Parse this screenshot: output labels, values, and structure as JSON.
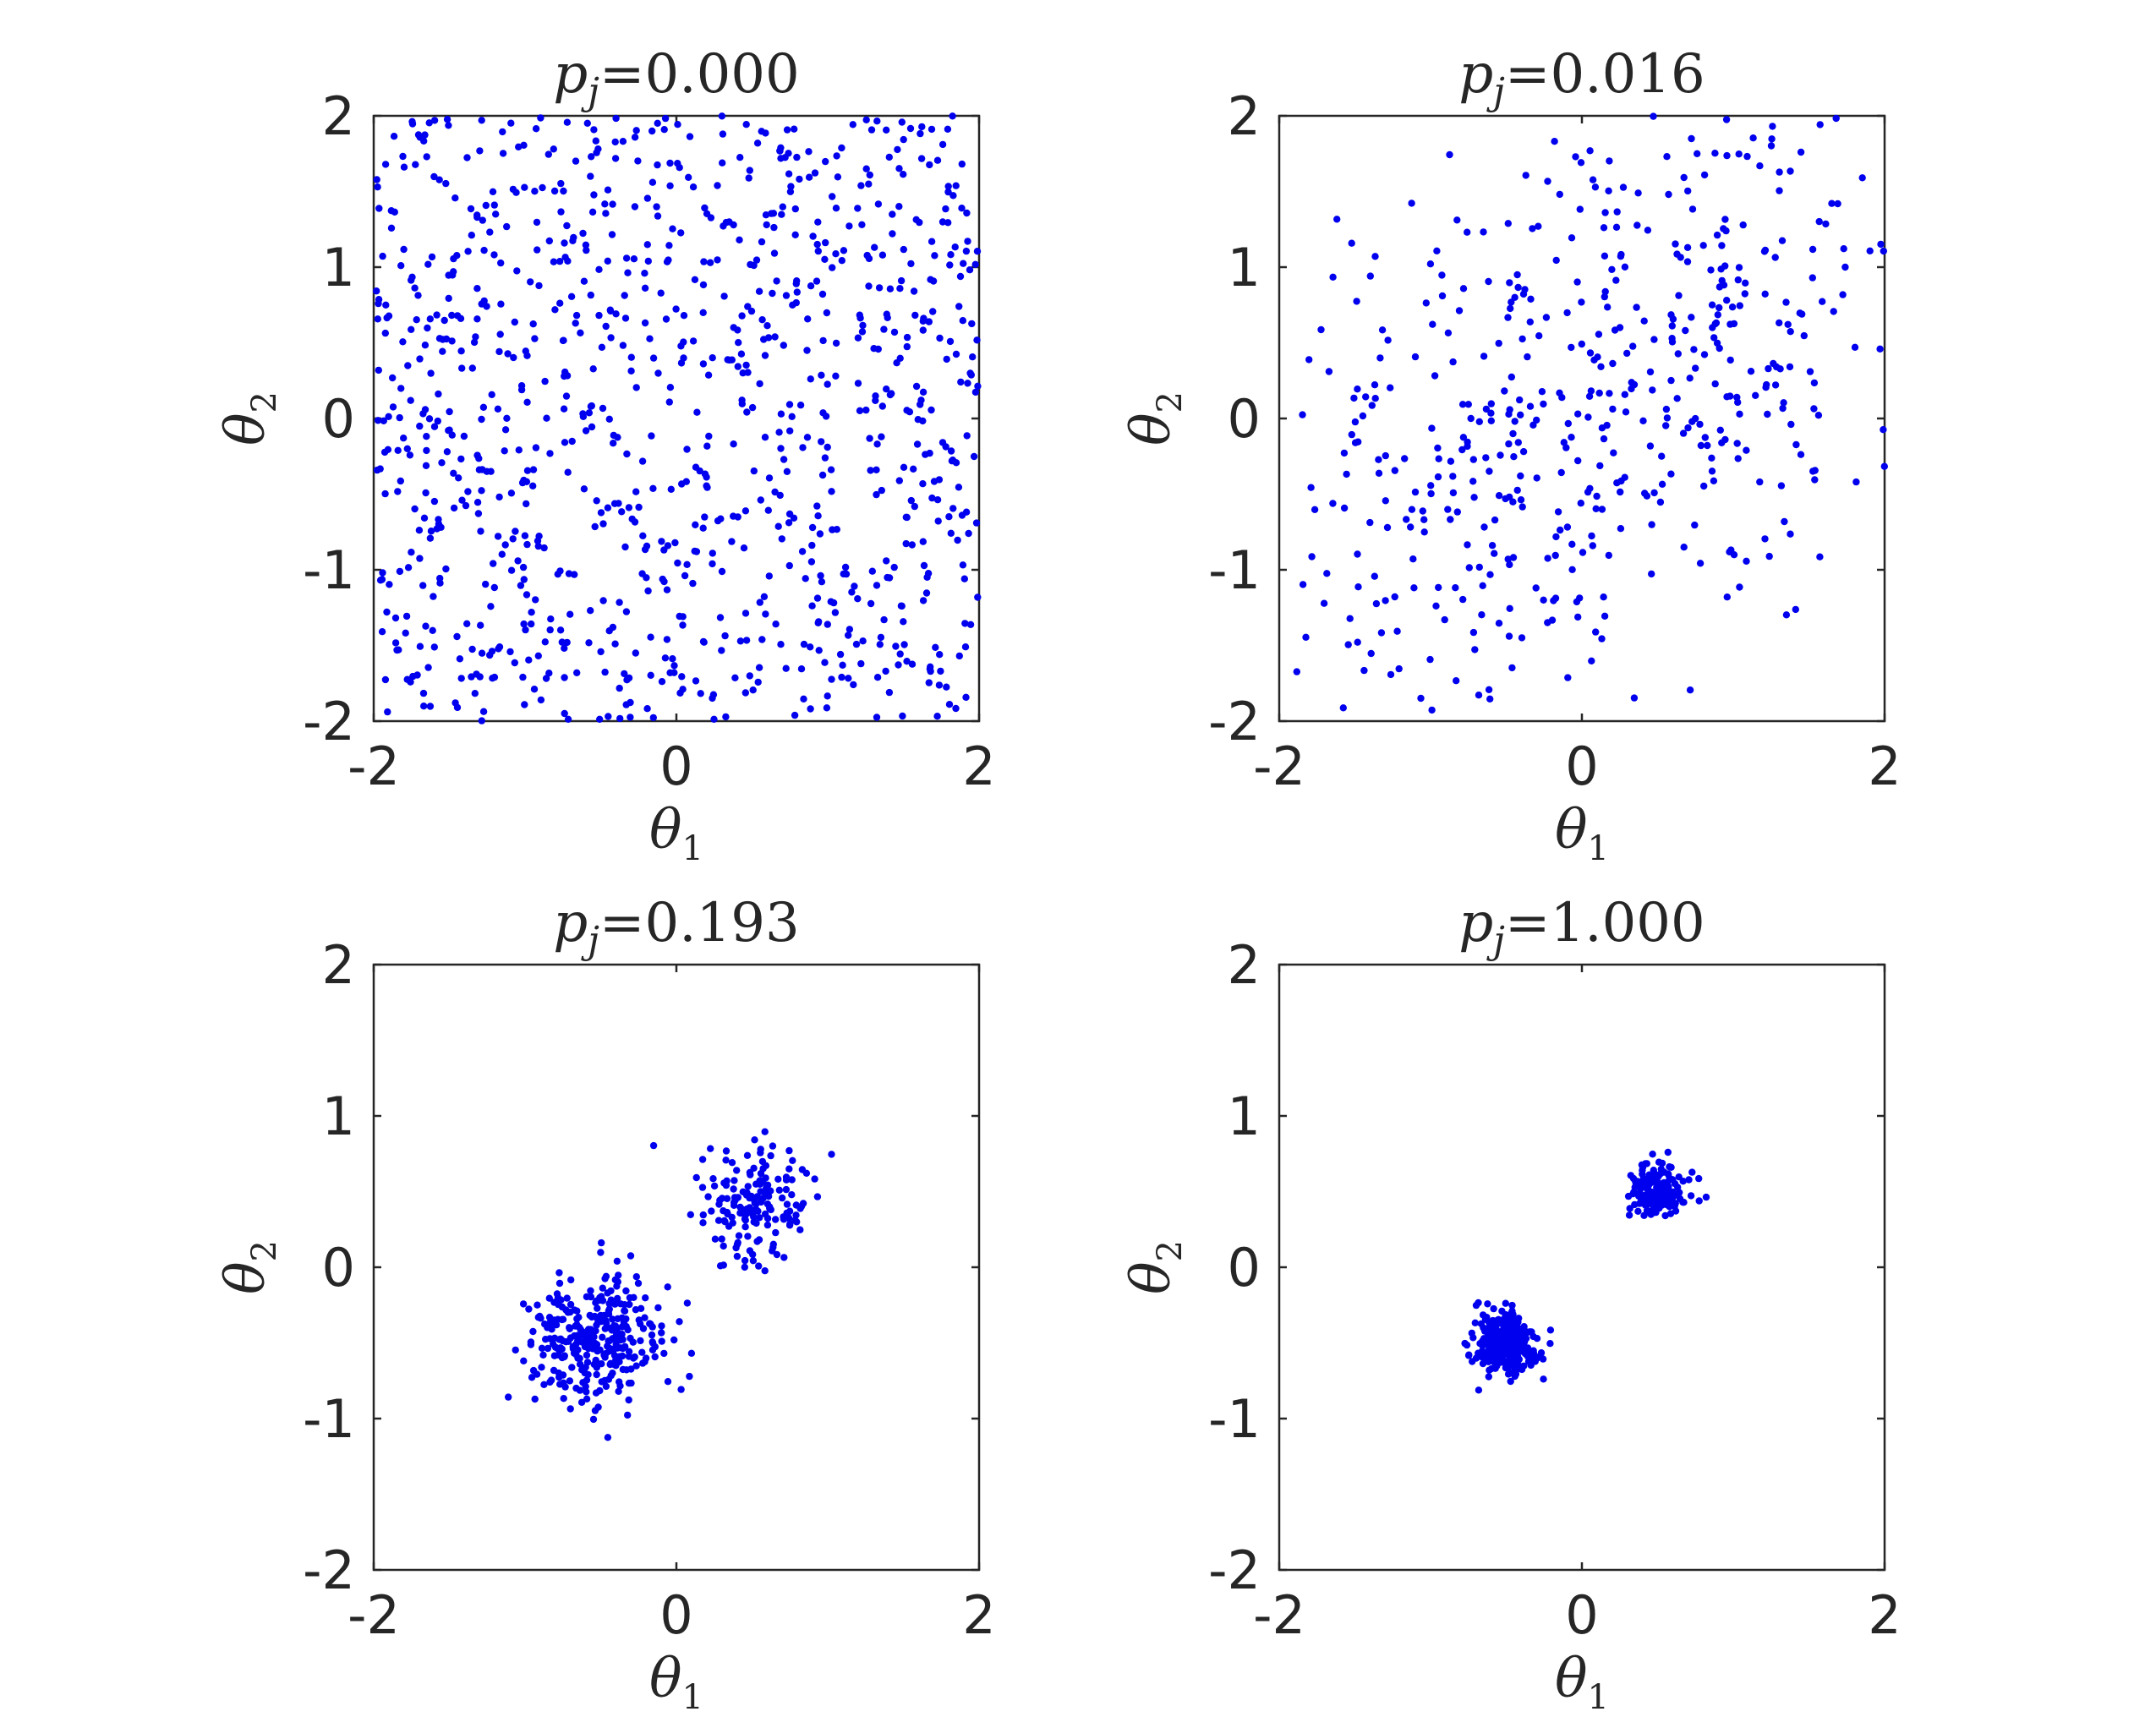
{
  "chart_data": [
    {
      "type": "scatter",
      "title": {
        "var": "p",
        "sub": "j",
        "value": "=0.000"
      },
      "xlabel": {
        "var": "θ",
        "sub": "1"
      },
      "ylabel": {
        "var": "θ",
        "sub": "2"
      },
      "xlim": [
        -2,
        2
      ],
      "ylim": [
        -2,
        2
      ],
      "xticks": [
        -2,
        0,
        2
      ],
      "yticks": [
        -2,
        -1,
        0,
        1,
        2
      ],
      "xtick_labels": [
        "-2",
        "0",
        "2"
      ],
      "ytick_labels": [
        "-2",
        "-1",
        "0",
        "1",
        "2"
      ],
      "grid": false,
      "marker_color": "#0000ee",
      "distribution": {
        "kind": "uniform",
        "x_range": [
          -2,
          2
        ],
        "y_range": [
          -2,
          2
        ],
        "n": 1000
      }
    },
    {
      "type": "scatter",
      "title": {
        "var": "p",
        "sub": "j",
        "value": "=0.016"
      },
      "xlabel": {
        "var": "θ",
        "sub": "1"
      },
      "ylabel": {
        "var": "θ",
        "sub": "2"
      },
      "xlim": [
        -2,
        2
      ],
      "ylim": [
        -2,
        2
      ],
      "xticks": [
        -2,
        0,
        2
      ],
      "yticks": [
        -2,
        -1,
        0,
        1,
        2
      ],
      "xtick_labels": [
        "-2",
        "0",
        "2"
      ],
      "ytick_labels": [
        "-2",
        "-1",
        "0",
        "1",
        "2"
      ],
      "grid": false,
      "marker_color": "#0000ee",
      "distribution": {
        "kind": "clusters",
        "clusters": [
          {
            "center": [
              -0.5,
              -0.5
            ],
            "sd": 0.85,
            "n": 260
          },
          {
            "center": [
              0.8,
              0.7
            ],
            "sd": 0.8,
            "n": 240
          }
        ]
      }
    },
    {
      "type": "scatter",
      "title": {
        "var": "p",
        "sub": "j",
        "value": "=0.193"
      },
      "xlabel": {
        "var": "θ",
        "sub": "1"
      },
      "ylabel": {
        "var": "θ",
        "sub": "2"
      },
      "xlim": [
        -2,
        2
      ],
      "ylim": [
        -2,
        2
      ],
      "xticks": [
        -2,
        0,
        2
      ],
      "yticks": [
        -2,
        -1,
        0,
        1,
        2
      ],
      "xtick_labels": [
        "-2",
        "0",
        "2"
      ],
      "ytick_labels": [
        "-2",
        "-1",
        "0",
        "1",
        "2"
      ],
      "grid": false,
      "marker_color": "#0000ee",
      "distribution": {
        "kind": "clusters",
        "clusters": [
          {
            "center": [
              -0.55,
              -0.5
            ],
            "sd": 0.22,
            "n": 330
          },
          {
            "center": [
              0.5,
              0.45
            ],
            "sd": 0.2,
            "n": 170
          }
        ]
      }
    },
    {
      "type": "scatter",
      "title": {
        "var": "p",
        "sub": "j",
        "value": "=1.000"
      },
      "xlabel": {
        "var": "θ",
        "sub": "1"
      },
      "ylabel": {
        "var": "θ",
        "sub": "2"
      },
      "xlim": [
        -2,
        2
      ],
      "ylim": [
        -2,
        2
      ],
      "xticks": [
        -2,
        0,
        2
      ],
      "yticks": [
        -2,
        -1,
        0,
        1,
        2
      ],
      "xtick_labels": [
        "-2",
        "0",
        "2"
      ],
      "ytick_labels": [
        "-2",
        "-1",
        "0",
        "1",
        "2"
      ],
      "grid": false,
      "marker_color": "#0000ee",
      "distribution": {
        "kind": "clusters",
        "clusters": [
          {
            "center": [
              -0.5,
              -0.5
            ],
            "sd": 0.1,
            "n": 330
          },
          {
            "center": [
              0.5,
              0.5
            ],
            "sd": 0.09,
            "n": 170
          }
        ]
      }
    }
  ]
}
